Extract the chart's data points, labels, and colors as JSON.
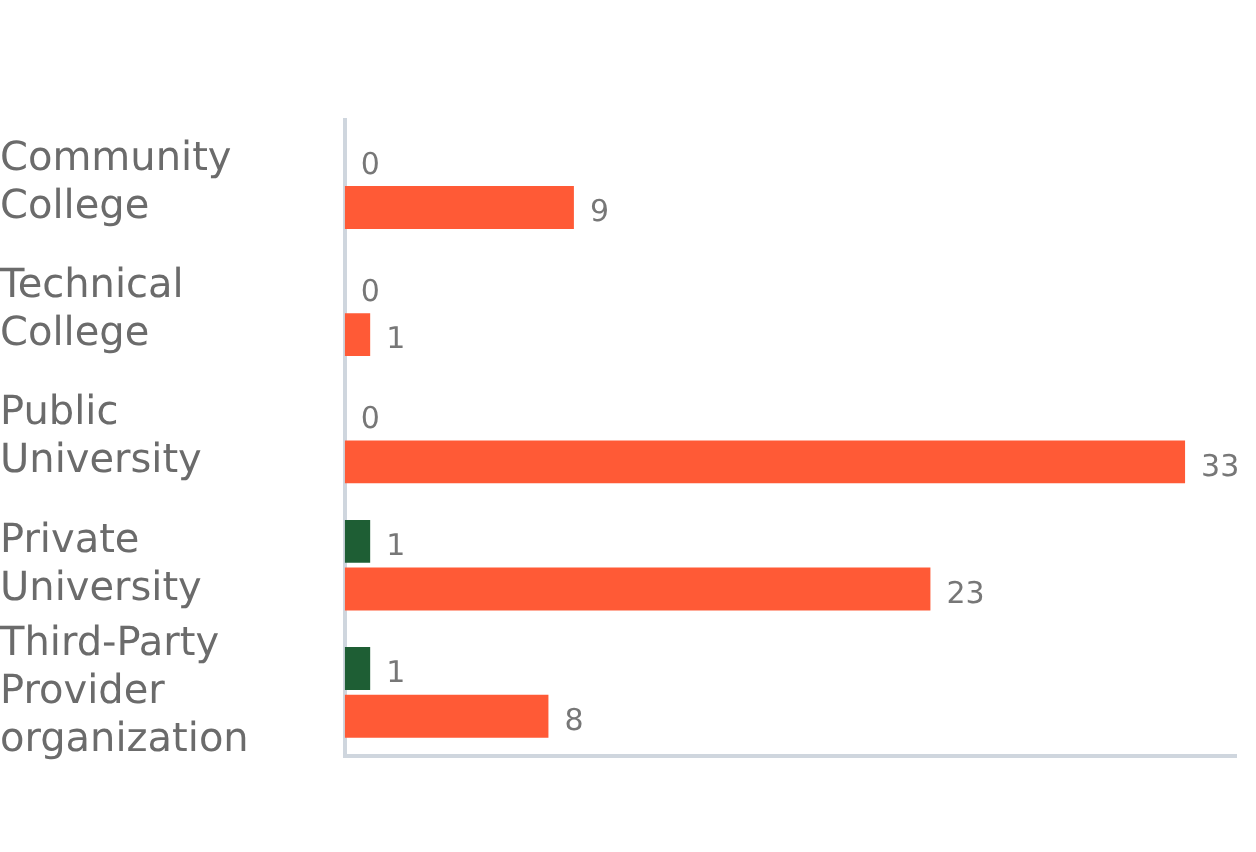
{
  "chart_data": {
    "type": "bar",
    "orientation": "horizontal",
    "categories": [
      "Community College",
      "Technical College",
      "Public University",
      "Private University",
      "Third-Party Provider organization"
    ],
    "series": [
      {
        "color": "#1e5e34",
        "values": [
          0,
          0,
          0,
          1,
          1
        ]
      },
      {
        "color": "#ff5a36",
        "values": [
          9,
          1,
          33,
          23,
          8
        ]
      }
    ],
    "data_labels": true,
    "grid": false,
    "legend": false,
    "tick_labels": "y"
  }
}
